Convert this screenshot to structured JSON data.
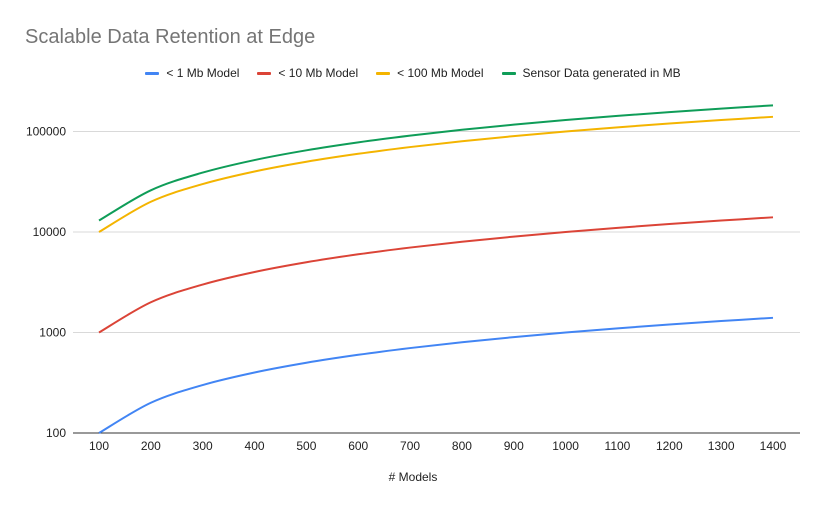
{
  "chart_data": {
    "type": "line",
    "title": "Scalable Data Retention at Edge",
    "xlabel": "# Models",
    "ylabel": "",
    "yscale": "log",
    "ylim": [
      100,
      200000
    ],
    "y_ticks": [
      100,
      1000,
      10000,
      100000
    ],
    "y_tick_labels": [
      "100",
      "1000",
      "10000",
      "100000"
    ],
    "grid": "horizontal",
    "legend_position": "top",
    "categories": [
      "100",
      "200",
      "300",
      "400",
      "500",
      "600",
      "700",
      "800",
      "900",
      "1000",
      "1100",
      "1200",
      "1300",
      "1400"
    ],
    "x": [
      100,
      200,
      300,
      400,
      500,
      600,
      700,
      800,
      900,
      1000,
      1100,
      1200,
      1300,
      1400
    ],
    "series": [
      {
        "name": "< 1 Mb Model",
        "color": "#4285f4",
        "values": [
          100,
          200,
          300,
          400,
          500,
          600,
          700,
          800,
          900,
          1000,
          1100,
          1200,
          1300,
          1400
        ]
      },
      {
        "name": "< 10 Mb Model",
        "color": "#db4437",
        "values": [
          1000,
          2000,
          3000,
          4000,
          5000,
          6000,
          7000,
          8000,
          9000,
          10000,
          11000,
          12000,
          13000,
          14000
        ]
      },
      {
        "name": "< 100 Mb Model",
        "color": "#f4b400",
        "values": [
          10000,
          20000,
          30000,
          40000,
          50000,
          60000,
          70000,
          80000,
          90000,
          100000,
          110000,
          120000,
          130000,
          140000
        ]
      },
      {
        "name": "Sensor Data generated in MB",
        "color": "#0f9d58",
        "values": [
          13000,
          26000,
          39000,
          52000,
          65000,
          78000,
          91000,
          104000,
          117000,
          130000,
          143000,
          156000,
          169000,
          182000
        ]
      }
    ]
  }
}
